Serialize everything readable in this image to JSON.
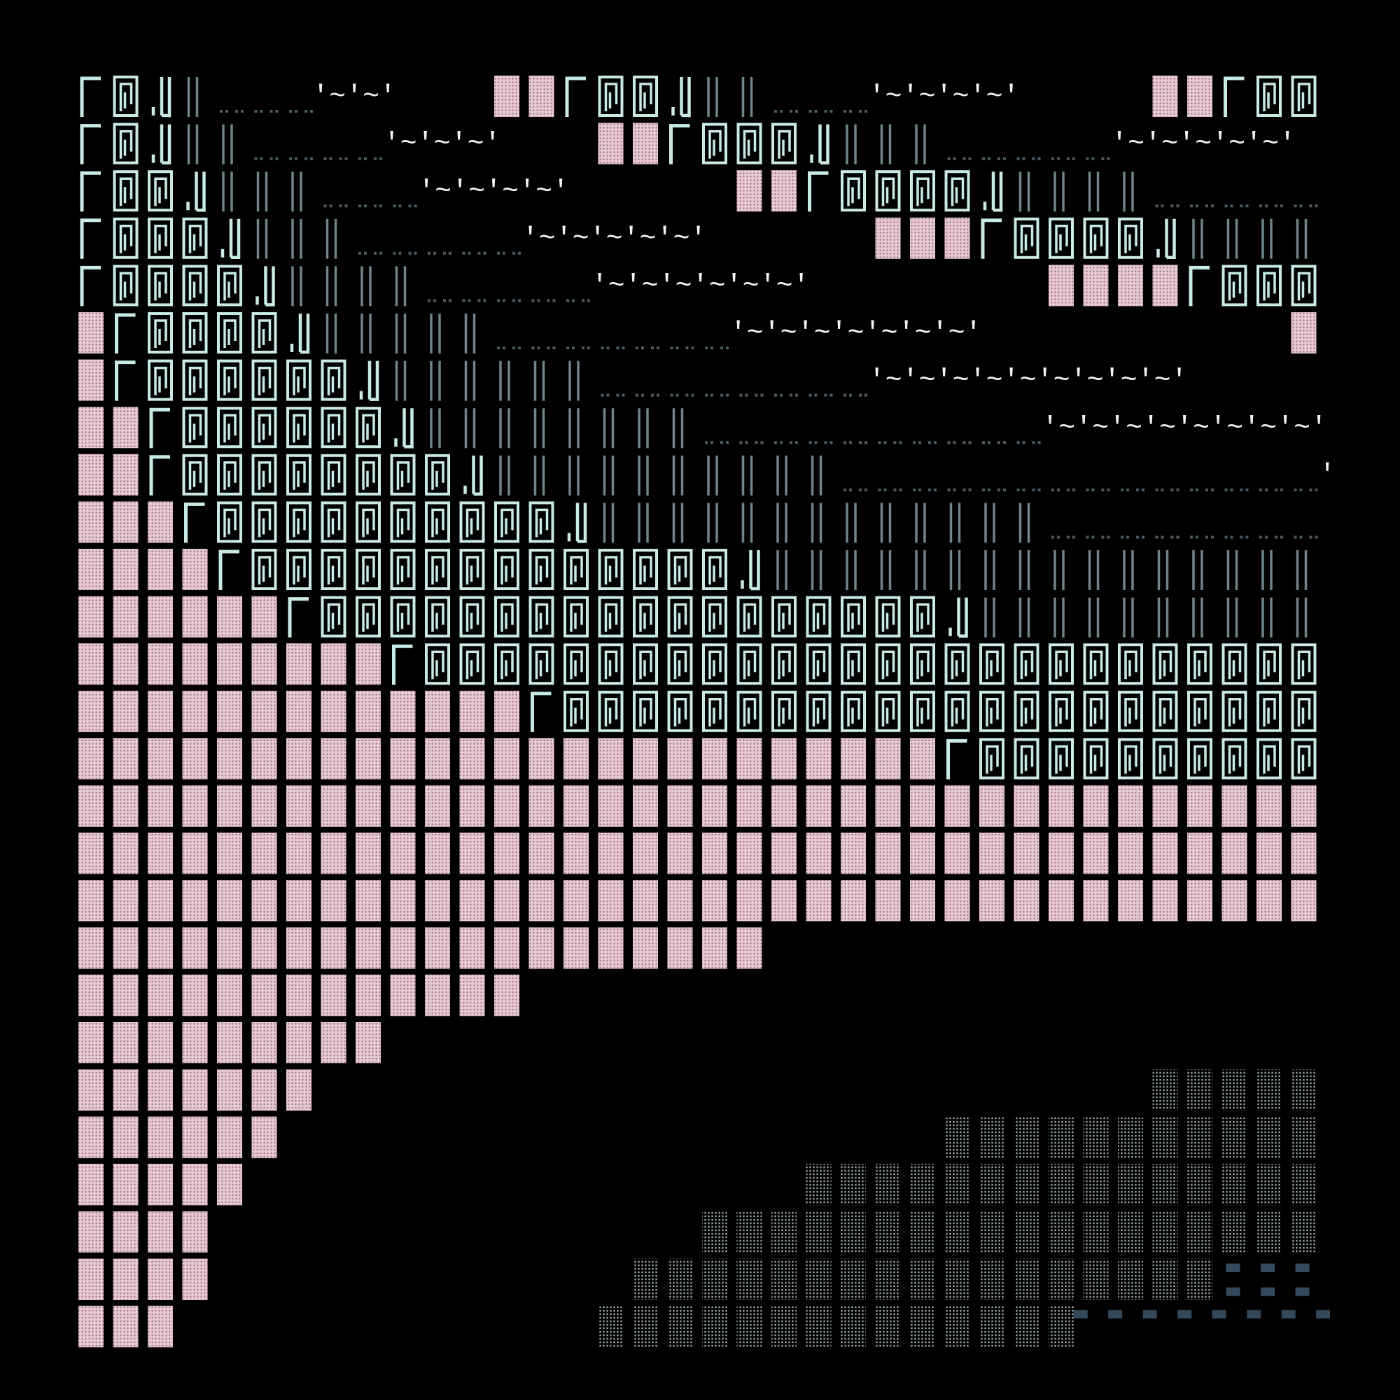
{
  "wave_labels": [
    "'~'~'",
    "'~'~'~'~'",
    "'~'~'~'",
    "'~'~'~'~'~'",
    "'~'~'~'~'",
    "'~'~'~'~'~'",
    "'~'~'~'~'~'~'",
    "'~'~'~'~'~'~'~'",
    "'~'~'~'~'~'~'~'~'~'",
    "'~'~'~'~'~'~'~'~'",
    "'"
  ]
}
